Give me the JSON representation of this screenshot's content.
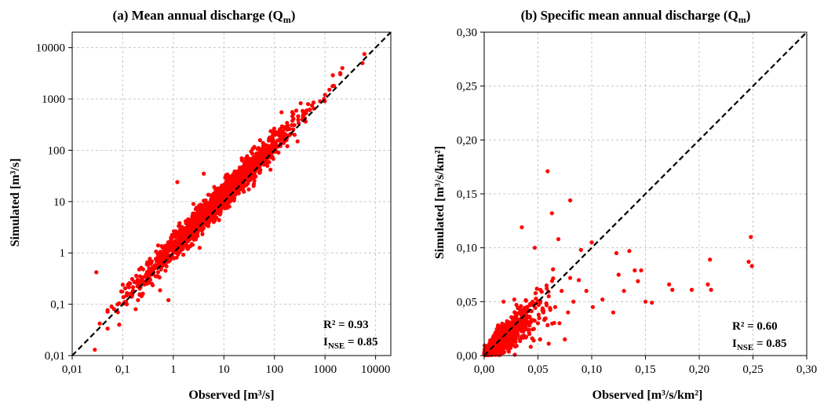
{
  "colors": {
    "points": "#ff0000",
    "identity_line": "#000000",
    "grid": "#c8c8c8",
    "axes": "#000000"
  },
  "chart_data": [
    {
      "type": "scatter",
      "title": "(a) Mean annual discharge (Q",
      "title_sub": "m",
      "title_close": ")",
      "xlabel": "Observed [m³/s]",
      "ylabel": "Simulated [m³/s]",
      "xscale": "log",
      "yscale": "log",
      "xlim": [
        0.01,
        20000
      ],
      "ylim": [
        0.01,
        20000
      ],
      "xticks": [
        0.01,
        0.1,
        1,
        10,
        100,
        1000,
        10000
      ],
      "yticks": [
        0.01,
        0.1,
        1,
        10,
        100,
        1000,
        10000
      ],
      "xtick_labels": [
        "0,01",
        "0,1",
        "1",
        "10",
        "100",
        "1000",
        "10000"
      ],
      "ytick_labels": [
        "0,01",
        "0,1",
        "1",
        "10",
        "100",
        "1000",
        "10000"
      ],
      "grid": true,
      "identity_line": true,
      "stats": {
        "r2_label": "R² = 0.93",
        "nse_prefix": "I",
        "nse_sub": "NSE",
        "nse_value": " = 0.85"
      },
      "points": [
        [
          0.028,
          0.013
        ],
        [
          0.03,
          0.42
        ],
        [
          0.035,
          0.042
        ],
        [
          0.06,
          0.09
        ],
        [
          0.085,
          0.04
        ],
        [
          0.1,
          0.24
        ],
        [
          0.12,
          0.1
        ],
        [
          0.15,
          0.14
        ],
        [
          0.18,
          0.08
        ],
        [
          0.2,
          0.12
        ],
        [
          0.22,
          0.35
        ],
        [
          0.25,
          0.16
        ],
        [
          0.3,
          0.25
        ],
        [
          0.3,
          0.6
        ],
        [
          0.35,
          0.3
        ],
        [
          0.4,
          0.45
        ],
        [
          0.45,
          0.35
        ],
        [
          0.5,
          0.7
        ],
        [
          0.5,
          1.4
        ],
        [
          0.6,
          0.55
        ],
        [
          0.7,
          1.2
        ],
        [
          0.8,
          0.12
        ],
        [
          0.9,
          0.9
        ],
        [
          1.0,
          1.6
        ],
        [
          1.2,
          24
        ],
        [
          1.3,
          1.1
        ],
        [
          1.5,
          2.5
        ],
        [
          1.8,
          1.8
        ],
        [
          2.0,
          3.5
        ],
        [
          2.2,
          2.0
        ],
        [
          2.5,
          9
        ],
        [
          3.0,
          2.6
        ],
        [
          3.5,
          4.5
        ],
        [
          4.0,
          35
        ],
        [
          4.5,
          3.5
        ],
        [
          5.0,
          6.5
        ],
        [
          6.0,
          5.0
        ],
        [
          7,
          9
        ],
        [
          8,
          6.8
        ],
        [
          9,
          14
        ],
        [
          10,
          10
        ],
        [
          12,
          9
        ],
        [
          14,
          18
        ],
        [
          16,
          14
        ],
        [
          18,
          25
        ],
        [
          20,
          17
        ],
        [
          25,
          30
        ],
        [
          30,
          26
        ],
        [
          35,
          50
        ],
        [
          40,
          35
        ],
        [
          50,
          55
        ],
        [
          60,
          80
        ],
        [
          70,
          60
        ],
        [
          80,
          95
        ],
        [
          100,
          110
        ],
        [
          120,
          90
        ],
        [
          150,
          170
        ],
        [
          200,
          260
        ],
        [
          250,
          200
        ],
        [
          300,
          340
        ],
        [
          400,
          420
        ],
        [
          500,
          620
        ],
        [
          600,
          650
        ],
        [
          800,
          900
        ],
        [
          1000,
          1200
        ],
        [
          1500,
          1800
        ],
        [
          2000,
          3200
        ],
        [
          2200,
          4000
        ],
        [
          5500,
          5000
        ],
        [
          6000,
          7500
        ],
        [
          0.08,
          0.07
        ],
        [
          0.7,
          0.45
        ]
      ],
      "scatter_model": {
        "count": 1500,
        "center_log10": 0.9,
        "spread_log10": 0.75,
        "noise_log10": 0.14,
        "bias_log10": 0.12,
        "min_log10": -1.3,
        "max_log10": 3.6
      }
    },
    {
      "type": "scatter",
      "title": "(b) Specific mean annual discharge (Q",
      "title_sub": "m",
      "title_close": ")",
      "xlabel": "Observed [m³/s/km²]",
      "ylabel": "Simulated [m³/s/km²]",
      "xscale": "linear",
      "yscale": "linear",
      "xlim": [
        0,
        0.3
      ],
      "ylim": [
        0,
        0.3
      ],
      "xticks": [
        0,
        0.05,
        0.1,
        0.15,
        0.2,
        0.25,
        0.3
      ],
      "yticks": [
        0,
        0.05,
        0.1,
        0.15,
        0.2,
        0.25,
        0.3
      ],
      "xtick_labels": [
        "0,00",
        "0,05",
        "0,10",
        "0,15",
        "0,20",
        "0,25",
        "0,30"
      ],
      "ytick_labels": [
        "0,00",
        "0,05",
        "0,10",
        "0,15",
        "0,20",
        "0,25",
        "0,30"
      ],
      "grid": true,
      "identity_line": true,
      "stats": {
        "r2_label": "R² = 0.60",
        "nse_prefix": "I",
        "nse_sub": "NSE",
        "nse_value": " = 0.85"
      },
      "points": [
        [
          0.059,
          0.171
        ],
        [
          0.08,
          0.144
        ],
        [
          0.063,
          0.132
        ],
        [
          0.035,
          0.119
        ],
        [
          0.069,
          0.108
        ],
        [
          0.1,
          0.105
        ],
        [
          0.123,
          0.095
        ],
        [
          0.135,
          0.097
        ],
        [
          0.09,
          0.098
        ],
        [
          0.047,
          0.1
        ],
        [
          0.248,
          0.11
        ],
        [
          0.246,
          0.087
        ],
        [
          0.249,
          0.083
        ],
        [
          0.21,
          0.089
        ],
        [
          0.208,
          0.066
        ],
        [
          0.211,
          0.061
        ],
        [
          0.193,
          0.061
        ],
        [
          0.175,
          0.061
        ],
        [
          0.172,
          0.066
        ],
        [
          0.15,
          0.05
        ],
        [
          0.156,
          0.049
        ],
        [
          0.143,
          0.069
        ],
        [
          0.14,
          0.079
        ],
        [
          0.146,
          0.079
        ],
        [
          0.13,
          0.06
        ],
        [
          0.125,
          0.075
        ],
        [
          0.12,
          0.04
        ],
        [
          0.11,
          0.052
        ],
        [
          0.101,
          0.045
        ],
        [
          0.095,
          0.06
        ],
        [
          0.088,
          0.07
        ],
        [
          0.083,
          0.05
        ],
        [
          0.078,
          0.04
        ],
        [
          0.072,
          0.06
        ],
        [
          0.07,
          0.03
        ],
        [
          0.066,
          0.045
        ],
        [
          0.06,
          0.055
        ],
        [
          0.055,
          0.04
        ],
        [
          0.05,
          0.03
        ],
        [
          0.045,
          0.05
        ],
        [
          0.042,
          0.02
        ],
        [
          0.038,
          0.035
        ],
        [
          0.035,
          0.025
        ],
        [
          0.03,
          0.03
        ],
        [
          0.025,
          0.02
        ],
        [
          0.02,
          0.015
        ],
        [
          0.015,
          0.01
        ],
        [
          0.01,
          0.012
        ],
        [
          0.005,
          0.006
        ],
        [
          0.003,
          0.002
        ],
        [
          0.06,
          0.011
        ],
        [
          0.052,
          0.015
        ],
        [
          0.075,
          0.015
        ],
        [
          0.064,
          0.08
        ],
        [
          0.08,
          0.072
        ],
        [
          0.058,
          0.065
        ],
        [
          0.049,
          0.062
        ],
        [
          0.03,
          0.047
        ],
        [
          0.028,
          0.052
        ],
        [
          0.018,
          0.05
        ]
      ],
      "scatter_model": {
        "count": 900,
        "xmax": 0.075,
        "ratio": 0.85,
        "noise": 0.008
      }
    }
  ]
}
